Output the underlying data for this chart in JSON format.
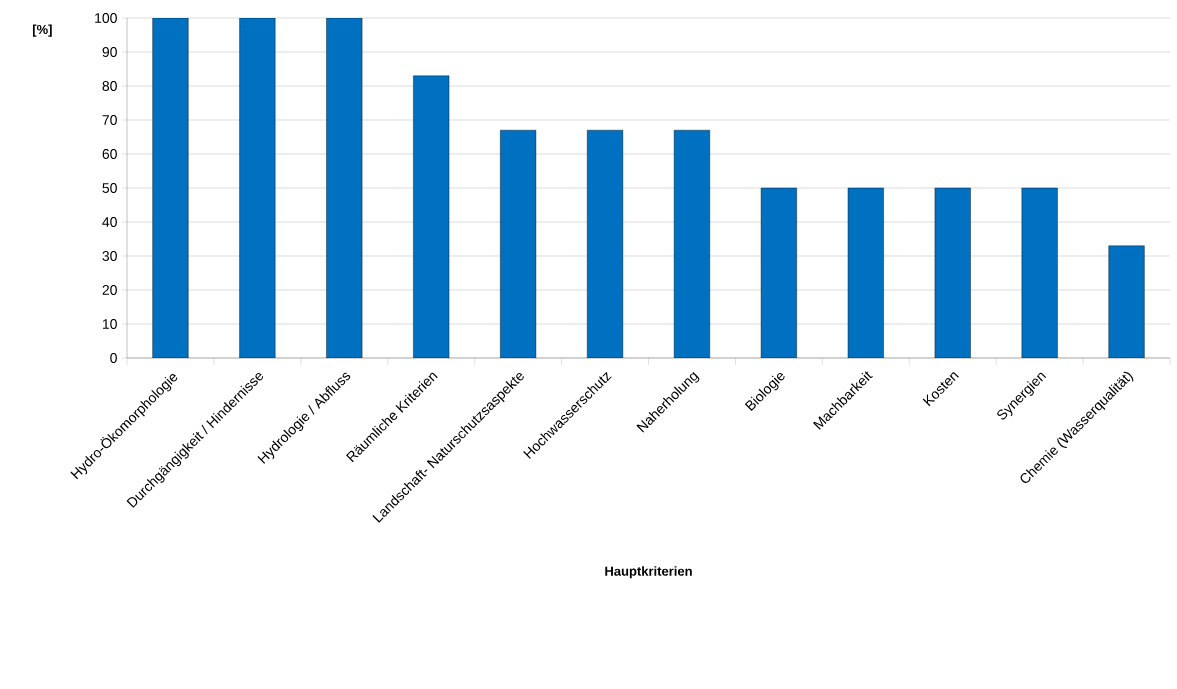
{
  "chart_data": {
    "type": "bar",
    "ylabel": "[%]",
    "xlabel": "Hauptkriterien",
    "categories": [
      "Hydro-Ökomorphologie",
      "Durchgängigkeit / Hindernisse",
      "Hydrologie / Abfluss",
      "Räumliche Kriterien",
      "Landschaft- Naturschutzsaspekte",
      "Hochwasserschutz",
      "Naherholung",
      "Biologie",
      "Machbarkeit",
      "Kosten",
      "Synergien",
      "Chemie (Wasserqualität)"
    ],
    "values": [
      100,
      100,
      100,
      83,
      67,
      67,
      67,
      50,
      50,
      50,
      50,
      33
    ],
    "color": "#0070c0",
    "ylim": [
      0,
      100
    ],
    "yticks": [
      0,
      10,
      20,
      30,
      40,
      50,
      60,
      70,
      80,
      90,
      100
    ],
    "grid": "y"
  }
}
